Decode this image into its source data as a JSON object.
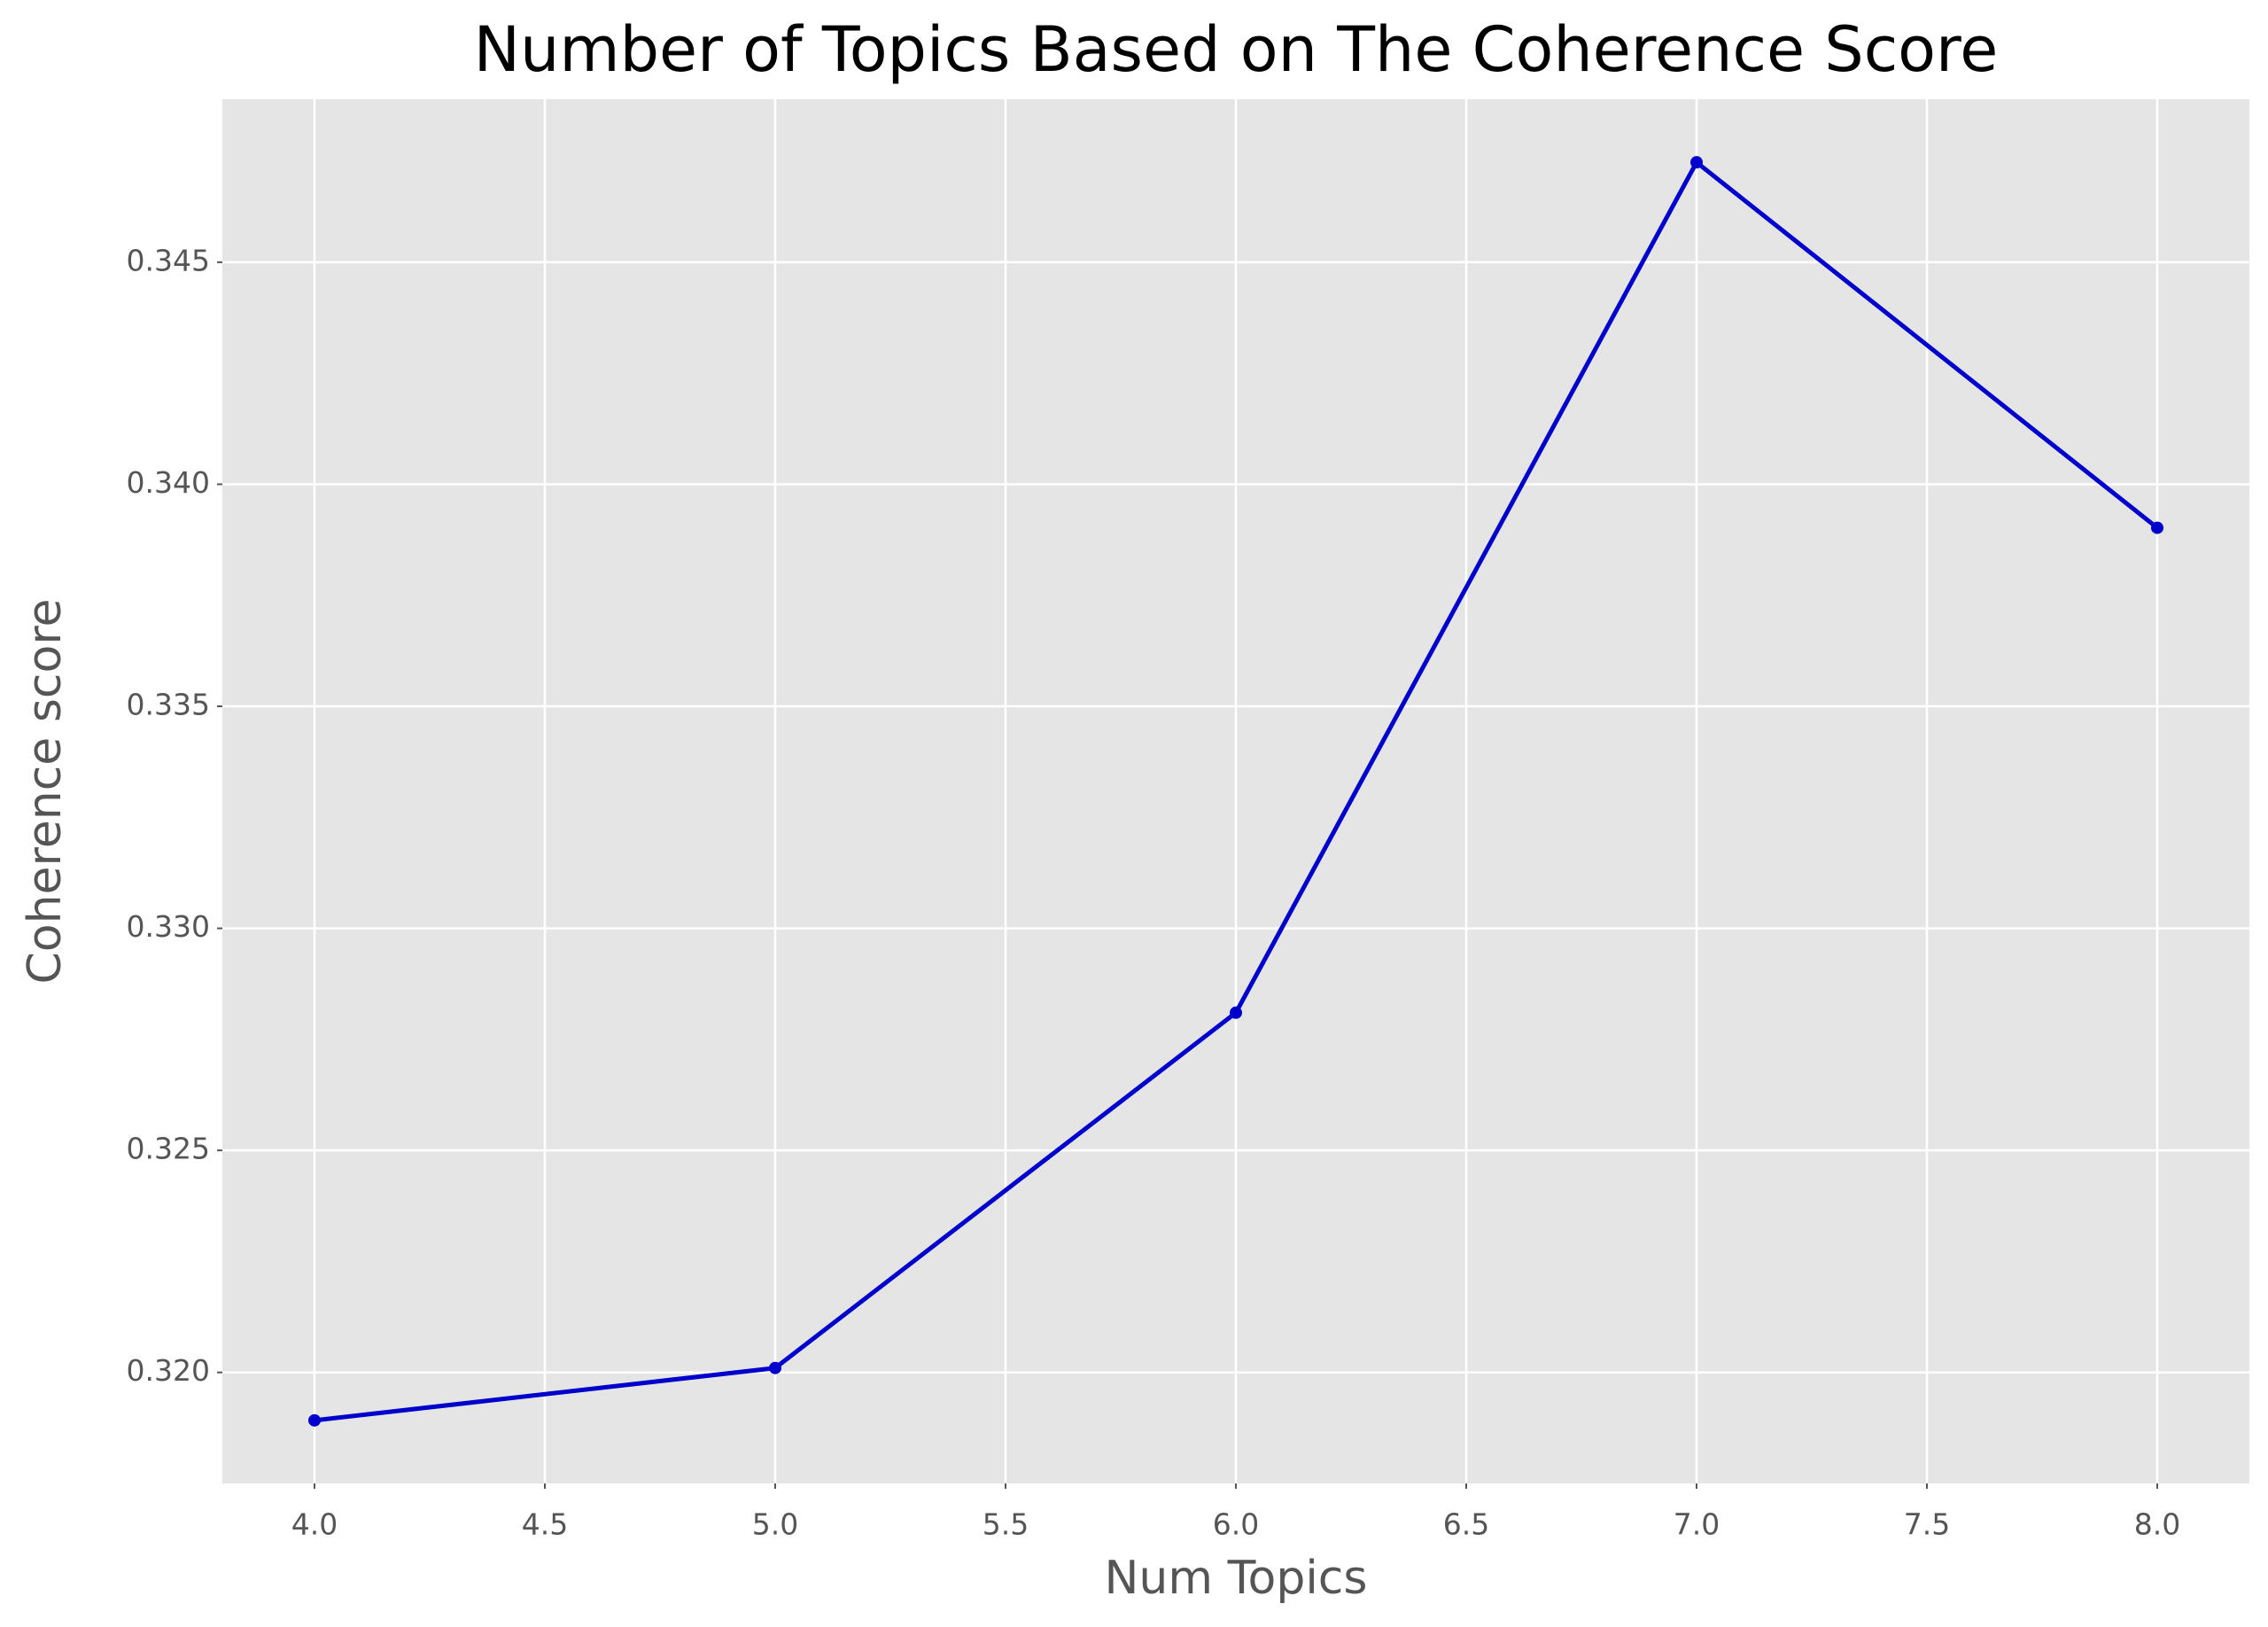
{
  "chart_data": {
    "type": "line",
    "title": "Number of Topics Based on The Coherence Score",
    "x_label": "Num Topics",
    "y_label": "Coherence score",
    "x": [
      4,
      5,
      6,
      7,
      8
    ],
    "series": [
      {
        "name": "Coherence score",
        "color": "#0000cd",
        "values": [
          0.31892,
          0.3201,
          0.3281,
          0.34725,
          0.33902
        ]
      }
    ],
    "xlim": [
      3.8,
      8.2
    ],
    "xticks": [
      {
        "value": 4,
        "label": "4.0"
      },
      4.5,
      {
        "value": 5,
        "label": "5.0"
      },
      5.5,
      {
        "value": 6,
        "label": "6.0"
      },
      6.5,
      {
        "value": 7,
        "label": "7.0"
      },
      7.5,
      {
        "value": 8,
        "label": "8.0"
      }
    ],
    "ylim": [
      0.3175,
      0.34867
    ],
    "yticks": [
      {
        "value": 0.32,
        "label": "0.320"
      },
      0.325,
      {
        "value": 0.33,
        "label": "0.330"
      },
      0.335,
      {
        "value": 0.34,
        "label": "0.340"
      },
      0.345
    ],
    "grid": true
  }
}
